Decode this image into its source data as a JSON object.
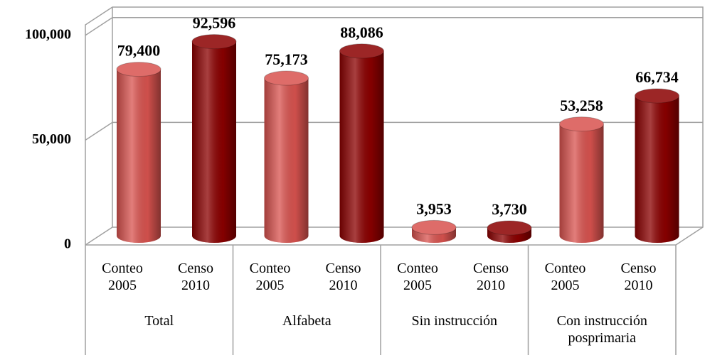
{
  "chart_data": {
    "type": "bar",
    "categories": [
      "Total",
      "Alfabeta",
      "Sin instrucción",
      "Con instrucción posprimaria"
    ],
    "series": [
      {
        "name": "Conteo 2005",
        "color": "#d9534f",
        "values": [
          79400,
          75173,
          3953,
          53258
        ],
        "value_labels": [
          "79,400",
          "75,173",
          "3,953",
          "53,258"
        ]
      },
      {
        "name": "Censo 2010",
        "color": "#8b0000",
        "values": [
          92596,
          88086,
          3730,
          66734
        ],
        "value_labels": [
          "92,596",
          "88,086",
          "3,730",
          "66,734"
        ]
      }
    ],
    "ylim": [
      0,
      105000
    ],
    "yticks": [
      0,
      {
        "value": 50000,
        "label": "50,000"
      },
      {
        "value": 100000,
        "label": "100,000"
      }
    ],
    "grid": true
  }
}
